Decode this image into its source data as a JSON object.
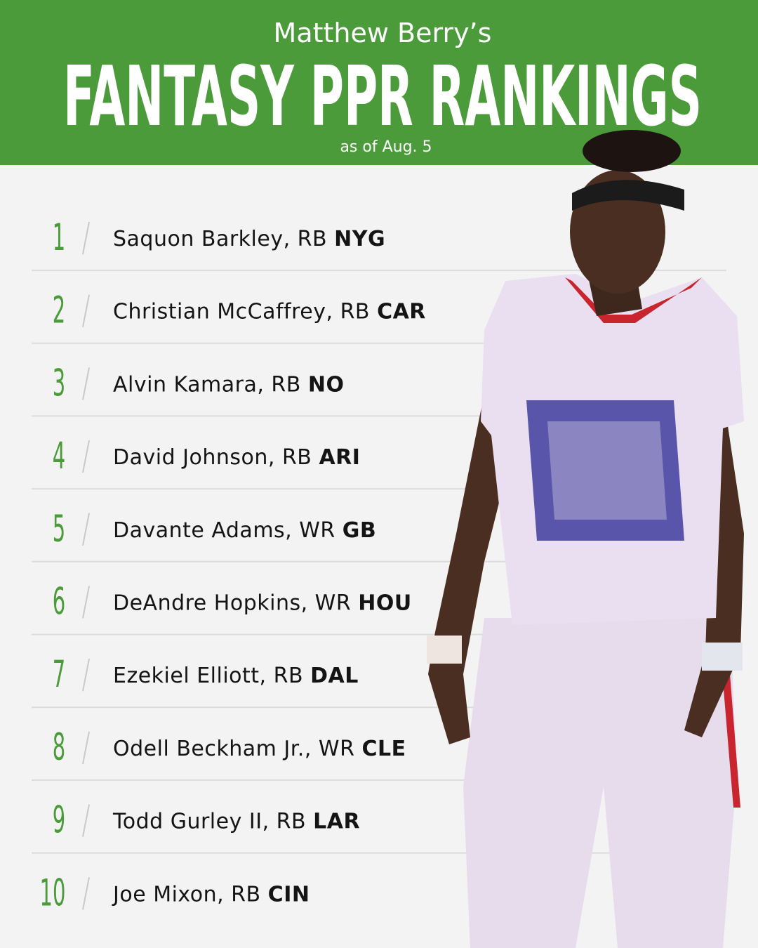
{
  "header": {
    "byline": "Matthew Berry’s",
    "title": "FANTASY PPR RANKINGS",
    "subtitle": "as of Aug. 5"
  },
  "rankings": [
    {
      "rank": 1,
      "name": "Saquon Barkley, RB",
      "team": "NYG"
    },
    {
      "rank": 2,
      "name": "Christian McCaffrey, RB",
      "team": "CAR"
    },
    {
      "rank": 3,
      "name": "Alvin Kamara, RB",
      "team": "NO"
    },
    {
      "rank": 4,
      "name": "David Johnson, RB",
      "team": "ARI"
    },
    {
      "rank": 5,
      "name": "Davante Adams, WR",
      "team": "GB"
    },
    {
      "rank": 6,
      "name": "DeAndre Hopkins, WR",
      "team": "HOU"
    },
    {
      "rank": 7,
      "name": "Ezekiel Elliott, RB",
      "team": "DAL"
    },
    {
      "rank": 8,
      "name": "Odell Beckham Jr., WR",
      "team": "CLE"
    },
    {
      "rank": 9,
      "name": "Todd Gurley II, RB",
      "team": "LAR"
    },
    {
      "rank": 10,
      "name": "Joe Mixon, RB",
      "team": "CIN"
    }
  ]
}
